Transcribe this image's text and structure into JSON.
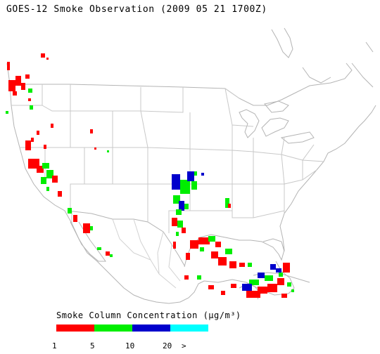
{
  "title": "GOES-12 Smoke Observation (2009 05 21  1700Z)",
  "legend": {
    "title": "Smoke Column Concentration (µg/m³)",
    "ticks": [
      "1",
      "5",
      "10",
      "20",
      ">"
    ],
    "colors": [
      "#ff0000",
      "#00ee00",
      "#0000cc",
      "#00ffff"
    ]
  },
  "map": {
    "border_color": "#b4b4b4",
    "region": "Continental United States, Mexico and Gulf of Mexico"
  }
}
